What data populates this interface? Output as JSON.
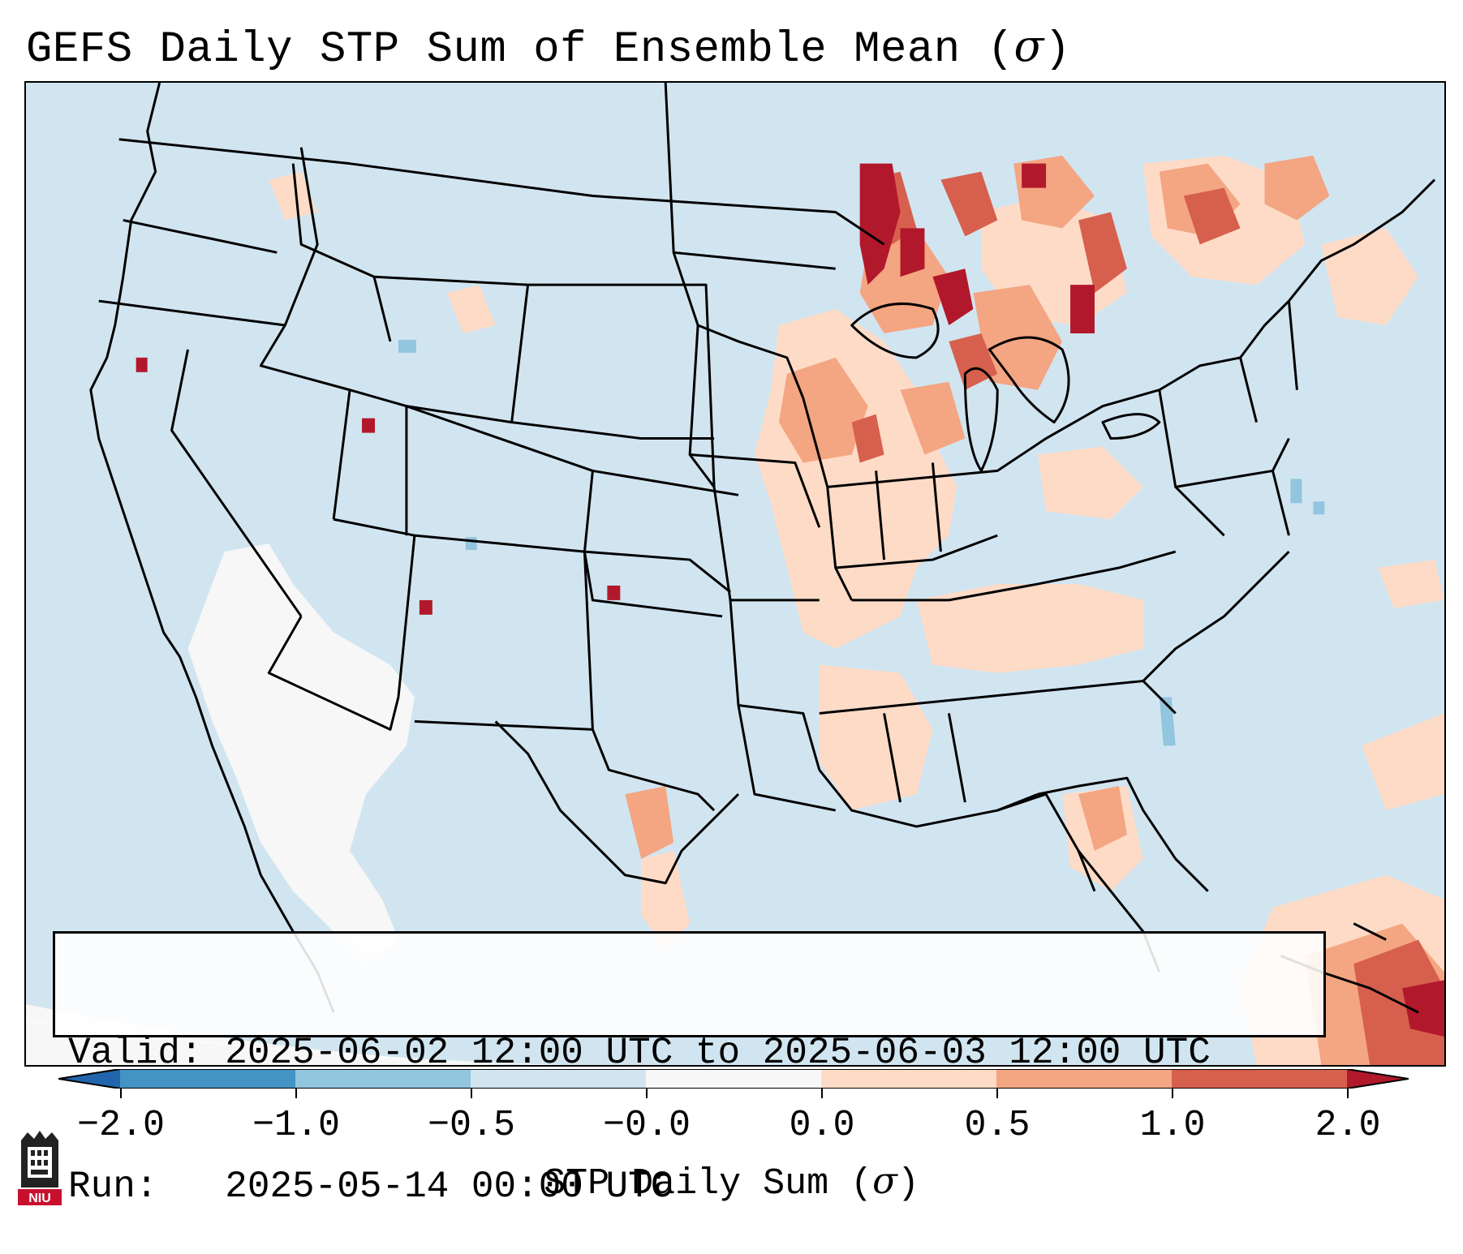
{
  "title": {
    "text": "GEFS Daily STP Sum of Ensemble Mean (",
    "symbol": "σ",
    "close": ")"
  },
  "info": {
    "valid_line": "Valid: 2025-06-02 12:00 UTC to 2025-06-03 12:00 UTC",
    "run_line": "Run:   2025-05-14 00:00 UTC"
  },
  "colorbar": {
    "label_text": "STP Daily Sum (",
    "label_symbol": "σ",
    "label_close": ")",
    "ticks": [
      "−2.0",
      "−1.0",
      "−0.5",
      "−0.0",
      "0.0",
      "0.5",
      "1.0",
      "2.0"
    ],
    "colors": [
      "#2166ac",
      "#4393c3",
      "#92c5de",
      "#d1e5f0",
      "#f7f7f7",
      "#fddbc7",
      "#f4a582",
      "#d6604d",
      "#b2182b"
    ]
  },
  "map": {
    "ocean_color": "#d1e5f0",
    "outline_color": "#000000"
  },
  "logo": {
    "text": "NIU",
    "color": "#c8102e"
  }
}
